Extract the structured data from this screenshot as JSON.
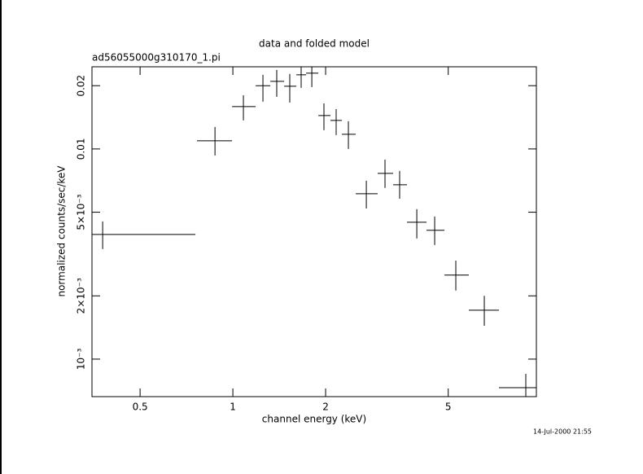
{
  "chart_data": {
    "type": "errorbar",
    "title": "data and folded model",
    "subtitle": "ad56055000g310170_1.pi",
    "xlabel": "channel energy (keV)",
    "ylabel": "normalized counts/sec/keV",
    "timestamp": "14-Jul-2000 21:55",
    "xscale": "log",
    "yscale": "log",
    "color": "#000000",
    "xlim": [
      0.349,
      9.66
    ],
    "ylim": [
      0.000663,
      0.0246
    ],
    "xticks": [
      0.5,
      1,
      2,
      5
    ],
    "yticks": [
      {
        "value": 0.001,
        "label": "10⁻³"
      },
      {
        "value": 0.002,
        "label": "2×10⁻³"
      },
      {
        "value": 0.005,
        "label": "5×10⁻³"
      },
      0.01,
      0.02
    ],
    "x": [
      0.378,
      0.875,
      1.082,
      1.252,
      1.388,
      1.53,
      1.666,
      1.804,
      1.975,
      2.164,
      2.371,
      2.711,
      3.117,
      3.477,
      3.953,
      4.518,
      5.291,
      6.546,
      8.925
    ],
    "x_low": [
      0.349,
      0.765,
      0.994,
      1.186,
      1.323,
      1.467,
      1.607,
      1.729,
      1.894,
      2.074,
      2.259,
      2.505,
      2.951,
      3.313,
      3.674,
      4.252,
      4.861,
      5.833,
      7.304
    ],
    "x_high": [
      0.756,
      0.994,
      1.186,
      1.323,
      1.467,
      1.607,
      1.729,
      1.894,
      2.074,
      2.259,
      2.505,
      2.951,
      3.313,
      3.674,
      4.252,
      4.861,
      5.833,
      7.304,
      9.66
    ],
    "values": [
      0.00392,
      0.01093,
      0.0159,
      0.02,
      0.02098,
      0.01988,
      0.02253,
      0.02294,
      0.01442,
      0.01367,
      0.01174,
      0.00612,
      0.00765,
      0.00675,
      0.00448,
      0.0041,
      0.00251,
      0.00171,
      0.000731
    ],
    "y_low": [
      0.00334,
      0.00931,
      0.01367,
      0.01678,
      0.0177,
      0.01663,
      0.01953,
      0.0197,
      0.01228,
      0.01164,
      0.01,
      0.00521,
      0.00652,
      0.0058,
      0.00375,
      0.00349,
      0.00212,
      0.00144,
      0.000663
    ],
    "y_high": [
      0.00452,
      0.01273,
      0.018,
      0.02253,
      0.02377,
      0.02274,
      0.0246,
      0.0246,
      0.01648,
      0.01548,
      0.01355,
      0.00706,
      0.0089,
      0.00786,
      0.00517,
      0.00477,
      0.00294,
      0.002,
      0.000851
    ]
  }
}
